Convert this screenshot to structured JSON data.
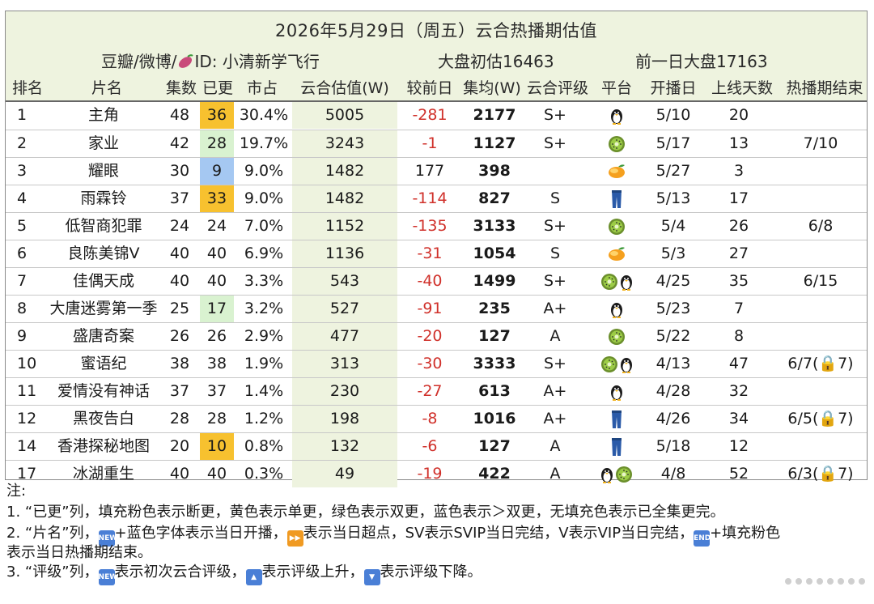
{
  "header": {
    "title": "2026年5月29日（周五）云合热播期估值",
    "source_prefix": "豆瓣/微博/",
    "source_id": "ID: 小清新学飞行",
    "estimate": "大盘初估16463",
    "previous": "前一日大盘17163"
  },
  "columns": [
    "排名",
    "片名",
    "集数",
    "已更",
    "市占",
    "云合估值(W)",
    "较前日",
    "集均(W)",
    "云合评级",
    "平台",
    "开播日",
    "上线天数",
    "热播期结束"
  ],
  "rows": [
    {
      "rank": "1",
      "name": "主角",
      "total": "48",
      "aired": "36",
      "aired_fill": "yellow",
      "share": "30.4%",
      "value": "5005",
      "diff": "-281",
      "avg": "2177",
      "rating": "S+",
      "platforms": [
        "penguin"
      ],
      "start": "5/10",
      "days": "20",
      "end": ""
    },
    {
      "rank": "2",
      "name": "家业",
      "total": "42",
      "aired": "28",
      "aired_fill": "green",
      "share": "19.7%",
      "value": "3243",
      "diff": "-1",
      "avg": "1127",
      "rating": "S+",
      "platforms": [
        "kiwi"
      ],
      "start": "5/17",
      "days": "13",
      "end": "7/10"
    },
    {
      "rank": "3",
      "name": "耀眼",
      "total": "30",
      "aired": "9",
      "aired_fill": "blue",
      "share": "9.0%",
      "value": "1482",
      "diff": "177",
      "avg": "398",
      "rating": "",
      "platforms": [
        "mango"
      ],
      "start": "5/27",
      "days": "3",
      "end": ""
    },
    {
      "rank": "4",
      "name": "雨霖铃",
      "total": "37",
      "aired": "33",
      "aired_fill": "yellow",
      "share": "9.0%",
      "value": "1482",
      "diff": "-114",
      "avg": "827",
      "rating": "S",
      "platforms": [
        "jeans"
      ],
      "start": "5/13",
      "days": "17",
      "end": ""
    },
    {
      "rank": "5",
      "name": "低智商犯罪",
      "total": "24",
      "aired": "24",
      "aired_fill": "",
      "share": "7.0%",
      "value": "1152",
      "diff": "-135",
      "avg": "3133",
      "rating": "S+",
      "platforms": [
        "kiwi"
      ],
      "start": "5/4",
      "days": "26",
      "end": "6/8"
    },
    {
      "rank": "6",
      "name": "良陈美锦V",
      "total": "40",
      "aired": "40",
      "aired_fill": "",
      "share": "6.9%",
      "value": "1136",
      "diff": "-31",
      "avg": "1054",
      "rating": "S",
      "platforms": [
        "mango"
      ],
      "start": "5/3",
      "days": "27",
      "end": ""
    },
    {
      "rank": "7",
      "name": "佳偶天成",
      "total": "40",
      "aired": "40",
      "aired_fill": "",
      "share": "3.3%",
      "value": "543",
      "diff": "-40",
      "avg": "1499",
      "rating": "S+",
      "platforms": [
        "kiwi",
        "penguin"
      ],
      "start": "4/25",
      "days": "35",
      "end": "6/15"
    },
    {
      "rank": "8",
      "name": "大唐迷雾第一季",
      "total": "25",
      "aired": "17",
      "aired_fill": "green",
      "share": "3.2%",
      "value": "527",
      "diff": "-91",
      "avg": "235",
      "rating": "A+",
      "platforms": [
        "penguin"
      ],
      "start": "5/23",
      "days": "7",
      "end": ""
    },
    {
      "rank": "9",
      "name": "盛唐奇案",
      "total": "26",
      "aired": "26",
      "aired_fill": "",
      "share": "2.9%",
      "value": "477",
      "diff": "-20",
      "avg": "127",
      "rating": "A",
      "platforms": [
        "kiwi"
      ],
      "start": "5/22",
      "days": "8",
      "end": ""
    },
    {
      "rank": "10",
      "name": "蜜语纪",
      "total": "38",
      "aired": "38",
      "aired_fill": "",
      "share": "1.9%",
      "value": "313",
      "diff": "-30",
      "avg": "3333",
      "rating": "S+",
      "platforms": [
        "kiwi",
        "penguin"
      ],
      "start": "4/13",
      "days": "47",
      "end": "6/7(🔒7)"
    },
    {
      "rank": "11",
      "name": "爱情没有神话",
      "total": "37",
      "aired": "37",
      "aired_fill": "",
      "share": "1.4%",
      "value": "230",
      "diff": "-27",
      "avg": "613",
      "rating": "A+",
      "platforms": [
        "penguin"
      ],
      "start": "4/28",
      "days": "32",
      "end": ""
    },
    {
      "rank": "12",
      "name": "黑夜告白",
      "total": "28",
      "aired": "28",
      "aired_fill": "",
      "share": "1.2%",
      "value": "198",
      "diff": "-8",
      "avg": "1016",
      "rating": "A+",
      "platforms": [
        "jeans"
      ],
      "start": "4/26",
      "days": "34",
      "end": "6/5(🔒7)"
    },
    {
      "rank": "14",
      "name": "香港探秘地图",
      "total": "20",
      "aired": "10",
      "aired_fill": "yellow",
      "share": "0.8%",
      "value": "132",
      "diff": "-6",
      "avg": "127",
      "rating": "A",
      "platforms": [
        "jeans"
      ],
      "start": "5/18",
      "days": "12",
      "end": ""
    },
    {
      "rank": "17",
      "name": "冰湖重生",
      "total": "40",
      "aired": "40",
      "aired_fill": "",
      "share": "0.3%",
      "value": "49",
      "diff": "-19",
      "avg": "422",
      "rating": "A",
      "platforms": [
        "penguin",
        "kiwi"
      ],
      "start": "4/8",
      "days": "52",
      "end": "6/3(🔒7)"
    }
  ],
  "notes": {
    "heading": "注:",
    "line1": "1. “已更”列，填充粉色表示断更，黄色表示单更，绿色表示双更，蓝色表示＞双更，无填充色表示已全集更完。",
    "line2a_1": "2. “片名”列，",
    "line2a_2": "+蓝色字体表示当日开播，",
    "line2a_3": "表示当日超点，SV表示SVIP当日完结，V表示VIP当日完结，",
    "line2a_4": "+填充粉色",
    "line2b": "表示当日热播期结束。",
    "line3_1": "3. “评级”列，",
    "line3_2": "表示初次云合评级，",
    "line3_3": "表示评级上升，",
    "line3_4": "表示评级下降。",
    "badge_new": "NEW",
    "badge_end": "END"
  },
  "colors": {
    "header_bg": "#eef3df",
    "yellow": "#f7c12f",
    "green": "#d9f2d0",
    "blue": "#a5c8f2",
    "negative": "#d0302a"
  }
}
